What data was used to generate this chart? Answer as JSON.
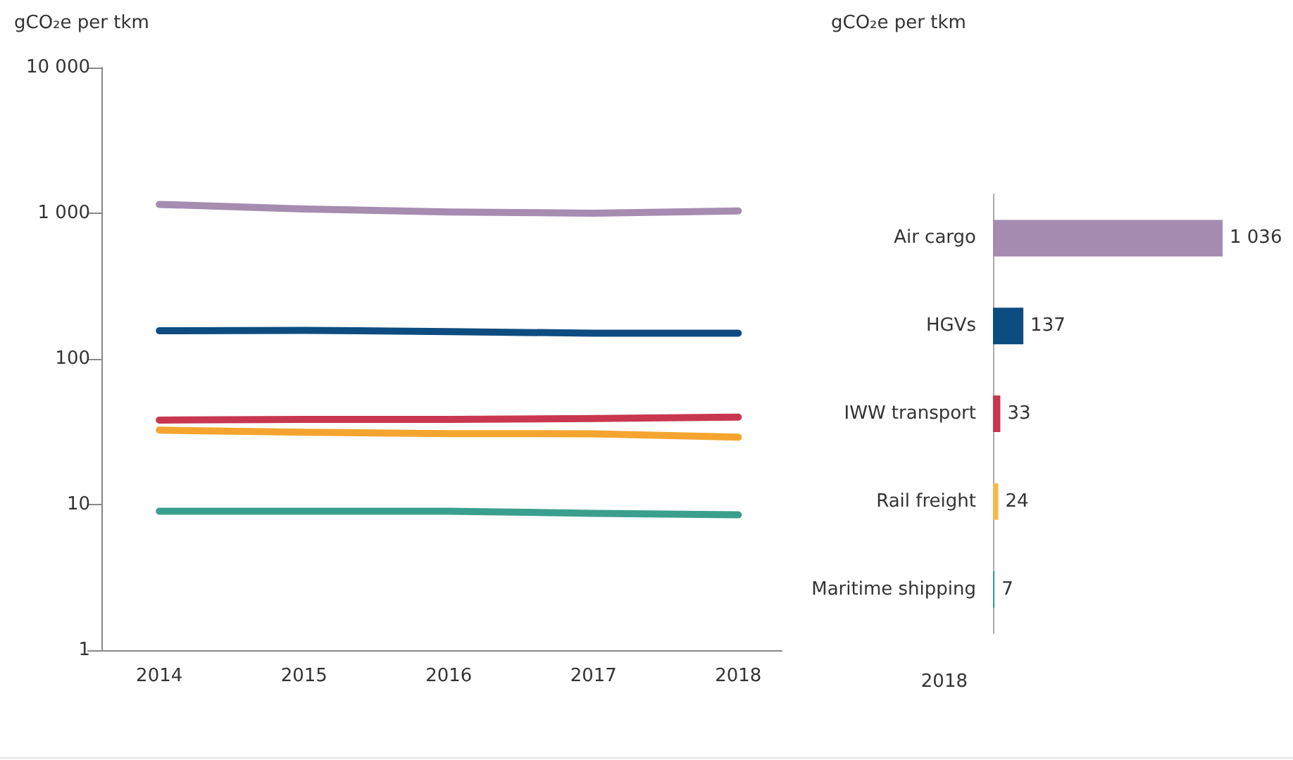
{
  "chart_data": [
    {
      "type": "line",
      "ylabel": "gCO₂e per tkm",
      "x": [
        2014,
        2015,
        2016,
        2017,
        2018
      ],
      "xlim": [
        2013.6,
        2018.3
      ],
      "xticks": [
        2014,
        2015,
        2016,
        2017,
        2018
      ],
      "ylim": [
        1,
        10000
      ],
      "yticks": [
        1,
        10,
        100,
        {
          "value": 1000,
          "label": "1 000"
        },
        {
          "value": 10000,
          "label": "10 000"
        }
      ],
      "log": "y",
      "grid": false,
      "marker": "none",
      "line_style": "solid",
      "series": [
        {
          "color": "#a58cb0",
          "values": [
            1150,
            1070,
            1020,
            1000,
            1036
          ]
        },
        {
          "color": "#0d4c80",
          "values": [
            156,
            157,
            154,
            150,
            150
          ]
        },
        {
          "color": "#c8374f",
          "values": [
            38,
            38.4,
            38.4,
            39,
            39.8
          ]
        },
        {
          "color": "#f5a52f",
          "values": [
            32.4,
            31.4,
            30.7,
            30.6,
            29
          ]
        },
        {
          "color": "#3b9f8e",
          "values": [
            9,
            9,
            9,
            8.7,
            8.5
          ]
        }
      ]
    },
    {
      "type": "bar",
      "orientation": "horizontal",
      "ylabel": "gCO₂e per tkm",
      "xlabel": "2018",
      "categories": [
        "Air cargo",
        "HGVs",
        "IWW transport",
        "Rail freight",
        "Maritime shipping"
      ],
      "values": [
        1036,
        137,
        33,
        24,
        7
      ],
      "value_labels": [
        "1 036",
        "137",
        "33",
        "24",
        "7"
      ],
      "colors": [
        "#a58cb0",
        "#0d4c80",
        "#c8374f",
        "#f7b84e",
        "#3b9f8e"
      ],
      "relative": false,
      "grid": false
    }
  ]
}
